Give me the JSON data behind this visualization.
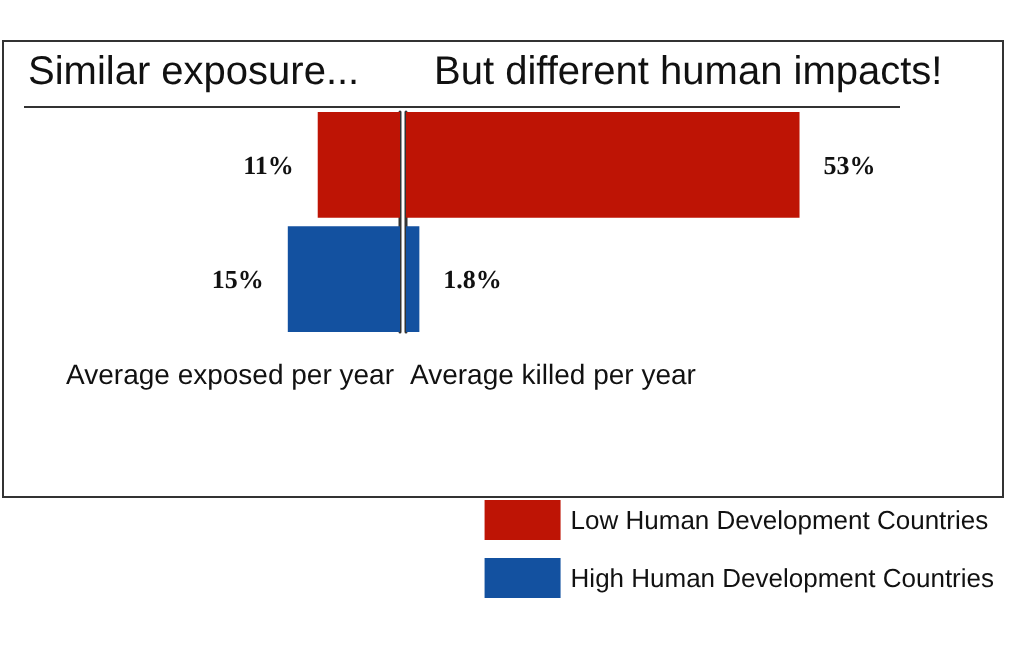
{
  "chart_data": [
    {
      "type": "bar",
      "orientation": "horizontal",
      "title": "Similar exposure...",
      "xlabel": "Average exposed per year",
      "categories": [
        null
      ],
      "xlim": [
        50,
        0
      ],
      "tick_labels": false,
      "grid": false,
      "legend": false,
      "series": [
        {
          "color": "#be1405",
          "values": [
            11
          ],
          "value_labels": [
            "11%"
          ]
        },
        {
          "color": "#1351a0",
          "values": [
            15
          ],
          "value_labels": [
            "15%"
          ]
        }
      ]
    },
    {
      "type": "bar",
      "orientation": "horizontal",
      "title": "But different human impacts!",
      "xlabel": "Average killed per year",
      "categories": [
        null
      ],
      "xlim": [
        0,
        80
      ],
      "tick_labels": false,
      "grid": false,
      "legend": "bottom right",
      "series": [
        {
          "name": "Low Human Development Countries",
          "color": "#be1405",
          "values": [
            53
          ],
          "value_labels": [
            "53%"
          ]
        },
        {
          "name": "High Human Development Countries",
          "color": "#1351a0",
          "values": [
            1.8
          ],
          "value_labels": [
            "1.8%"
          ]
        }
      ]
    }
  ]
}
